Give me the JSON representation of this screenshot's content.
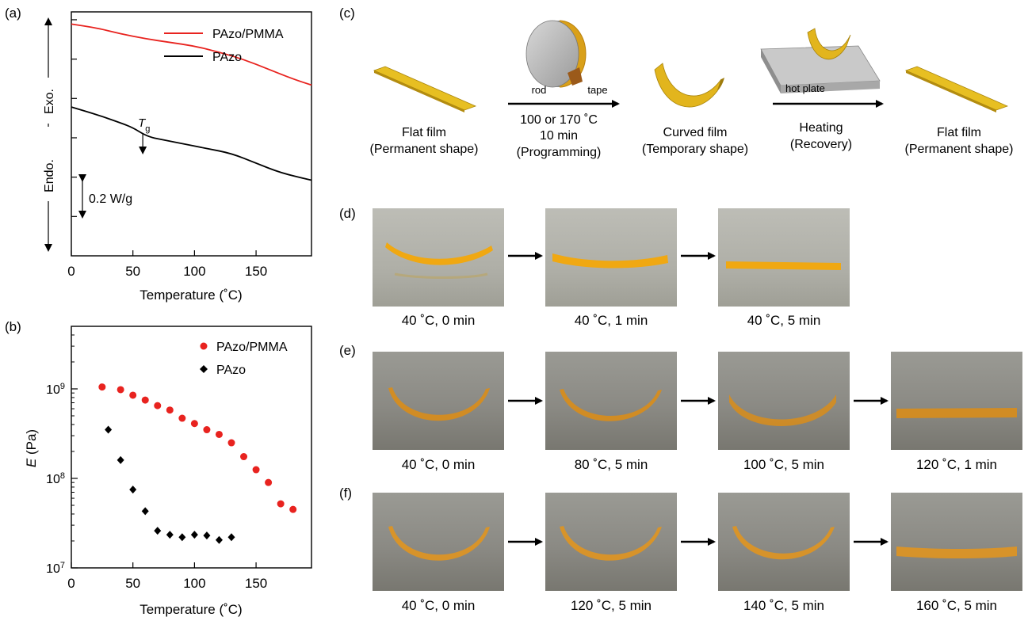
{
  "panels": {
    "a": "(a)",
    "b": "(b)",
    "c": "(c)",
    "d": "(d)",
    "e": "(e)",
    "f": "(f)"
  },
  "chart_data": [
    {
      "panel": "a",
      "type": "line",
      "xlabel": "Temperature (˚C)",
      "ylabel_top": "Exo.",
      "ylabel_bottom": "Endo.",
      "xlim": [
        0,
        195
      ],
      "xticks": [
        0,
        50,
        100,
        150
      ],
      "scale_bar": "0.2 W/g",
      "annotation_sym": "T",
      "annotation_sub": "g",
      "annotation_x": 58,
      "series": [
        {
          "name": "PAzo/PMMA",
          "color": "#e8231f",
          "x": [
            0,
            20,
            40,
            60,
            80,
            100,
            120,
            140,
            160,
            180,
            195
          ],
          "y": [
            0.95,
            0.935,
            0.91,
            0.89,
            0.875,
            0.86,
            0.835,
            0.805,
            0.765,
            0.725,
            0.7
          ]
        },
        {
          "name": "PAzo",
          "color": "#000000",
          "x": [
            0,
            20,
            40,
            50,
            58,
            65,
            75,
            90,
            110,
            130,
            150,
            170,
            195
          ],
          "y": [
            0.61,
            0.58,
            0.545,
            0.525,
            0.5,
            0.485,
            0.475,
            0.46,
            0.44,
            0.42,
            0.38,
            0.34,
            0.31
          ]
        }
      ]
    },
    {
      "panel": "b",
      "type": "scatter",
      "xlabel": "Temperature (˚C)",
      "ylabel_sym": "E",
      "ylabel_unit": " (Pa)",
      "xlim": [
        0,
        195
      ],
      "xticks": [
        0,
        50,
        100,
        150
      ],
      "ylog": true,
      "ylim": [
        10000000,
        5000000000
      ],
      "yticks": [
        {
          "value": 10000000,
          "base": "10",
          "exp": "7"
        },
        {
          "value": 100000000,
          "base": "10",
          "exp": "8"
        },
        {
          "value": 1000000000,
          "base": "10",
          "exp": "9"
        }
      ],
      "series": [
        {
          "name": "PAzo/PMMA",
          "marker": "circle",
          "color": "#e8231f",
          "x": [
            25,
            40,
            50,
            60,
            70,
            80,
            90,
            100,
            110,
            120,
            130,
            140,
            150,
            160,
            170,
            180
          ],
          "y": [
            1050000000.0,
            980000000.0,
            850000000.0,
            750000000.0,
            650000000.0,
            580000000.0,
            470000000.0,
            410000000.0,
            350000000.0,
            310000000.0,
            250000000.0,
            175000000.0,
            125000000.0,
            90000000.0,
            52000000.0,
            45000000.0
          ]
        },
        {
          "name": "PAzo",
          "marker": "diamond",
          "color": "#000000",
          "x": [
            30,
            40,
            50,
            60,
            70,
            80,
            90,
            100,
            110,
            120,
            130
          ],
          "y": [
            350000000.0,
            160000000.0,
            75000000.0,
            43000000.0,
            26000000.0,
            23500000.0,
            22000000.0,
            23500000.0,
            23000000.0,
            20500000.0,
            22000000.0
          ]
        }
      ]
    }
  ],
  "scheme": {
    "step1_line1": "Flat film",
    "step1_line2": "(Permanent shape)",
    "rod_label": "rod",
    "tape_label": "tape",
    "prog_line1": "100 or 170 ˚C",
    "prog_line2": "10 min",
    "prog_line3": "(Programming)",
    "step2_line1": "Curved film",
    "step2_line2": "(Temporary shape)",
    "hotplate_label": "hot plate",
    "heat_line1": "Heating",
    "heat_line2": "(Recovery)",
    "step3_line1": "Flat film",
    "step3_line2": "(Permanent shape)"
  },
  "photos": {
    "d": [
      "40 ˚C, 0 min",
      "40 ˚C, 1 min",
      "40 ˚C, 5 min"
    ],
    "e": [
      "40 ˚C, 0 min",
      "80 ˚C, 5 min",
      "100 ˚C, 5 min",
      "120 ˚C, 1 min"
    ],
    "f": [
      "40 ˚C, 0 min",
      "120 ˚C, 5 min",
      "140 ˚C, 5 min",
      "160 ˚C, 5 min"
    ]
  }
}
